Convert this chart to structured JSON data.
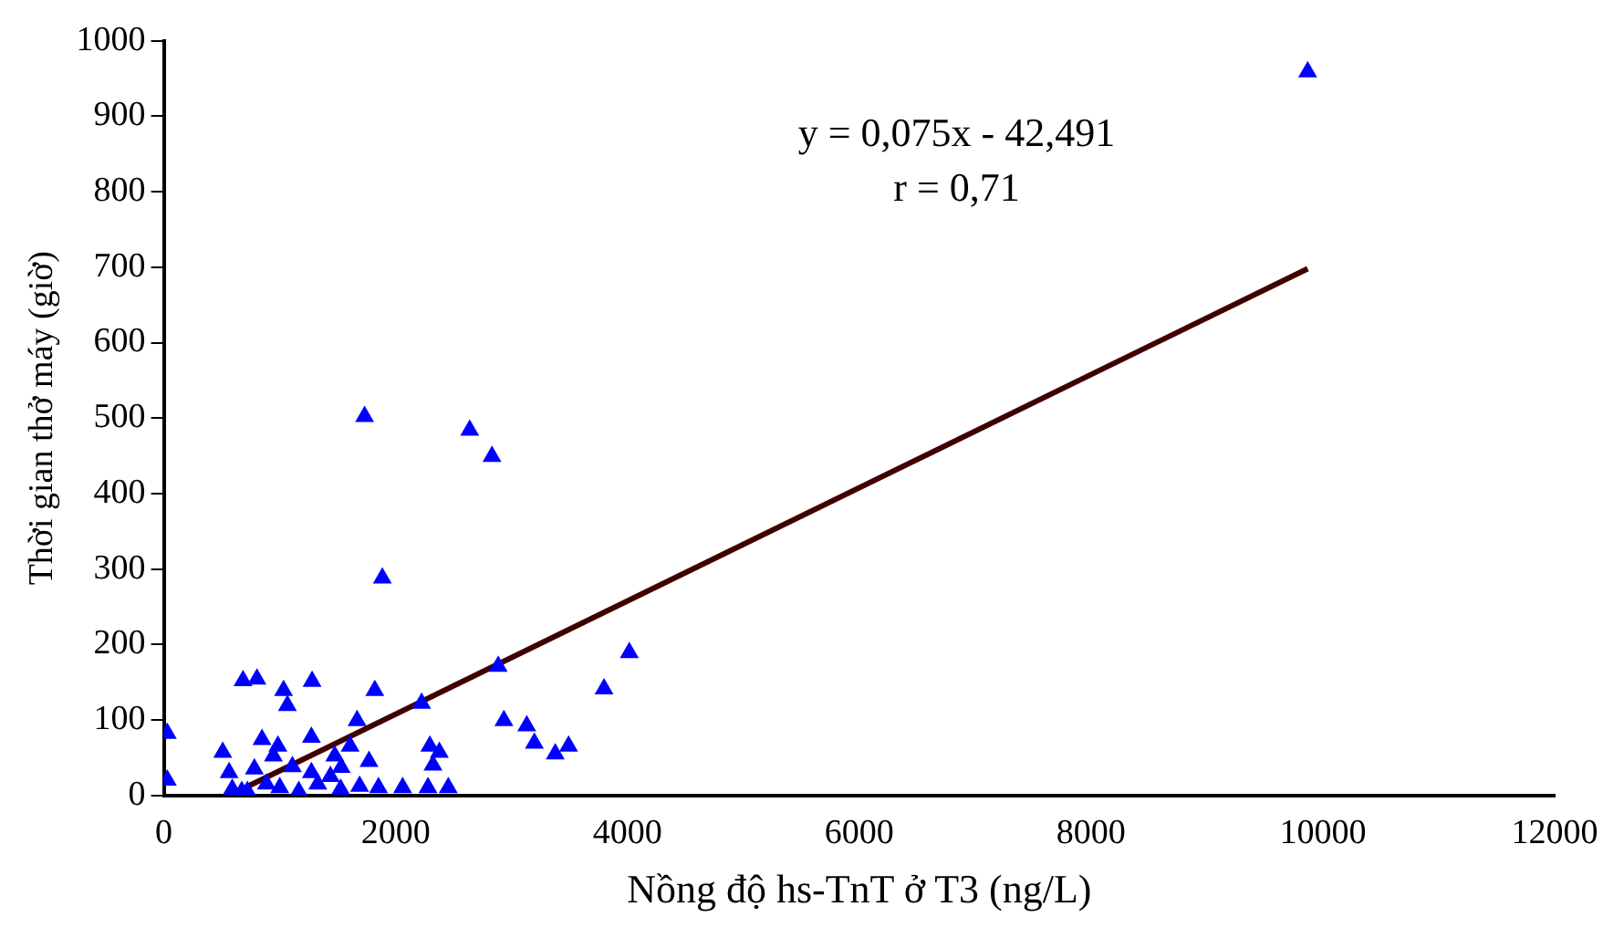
{
  "chart_data": {
    "type": "scatter",
    "xlabel": "Nồng độ hs-TnT ở T3 (ng/L)",
    "ylabel": "Thời gian thở máy (giờ)",
    "xlim": [
      0,
      12000
    ],
    "xticks": [
      0,
      2000,
      4000,
      6000,
      8000,
      10000,
      12000
    ],
    "ylim": [
      0,
      1000
    ],
    "yticks": [
      0,
      100,
      200,
      300,
      400,
      500,
      600,
      700,
      800,
      900,
      1000
    ],
    "grid": false,
    "legend": false,
    "marker": "triangle",
    "annotations": [
      "y = 0,075x - 42,491",
      "r = 0,71"
    ],
    "series": [
      {
        "type": "scatter",
        "color": "#0000ff",
        "x": [
          30,
          30,
          683,
          803,
          1033,
          1066,
          1279,
          1820,
          2224,
          2885,
          4016,
          3798,
          2934,
          3131,
          3197,
          3377,
          3492,
          1667,
          1273,
          847,
          508,
          984,
          2295,
          2377,
          2322,
          1770,
          1607,
          590,
          1852,
          2060,
          2279,
          2454,
          1689,
          1525,
          563,
          781,
          945,
          1109,
          1273,
          1437,
          1000,
          1164,
          1328,
          672,
          885,
          721,
          1530,
          1475,
          1732,
          2639,
          2831,
          1885,
          9869
        ],
        "values": [
          82,
          20,
          152,
          154,
          139,
          119,
          151,
          139,
          122,
          171,
          189,
          141,
          99,
          92,
          69,
          55,
          65,
          99,
          77,
          74,
          57,
          65,
          65,
          57,
          40,
          45,
          65,
          8,
          10,
          10,
          10,
          10,
          12,
          8,
          30,
          35,
          52,
          38,
          30,
          25,
          10,
          5,
          15,
          5,
          15,
          5,
          37,
          52,
          502,
          484,
          449,
          288,
          959
        ]
      },
      {
        "type": "line",
        "color": "#400000",
        "line_style": "solid",
        "marker": "none",
        "x": [
          567,
          9869
        ],
        "values": [
          0,
          698
        ]
      }
    ]
  }
}
